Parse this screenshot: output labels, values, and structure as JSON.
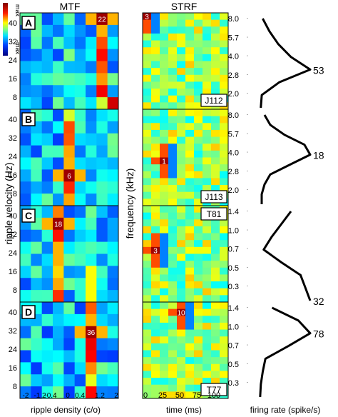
{
  "colorbar": {
    "top_label": "max",
    "bottom_label": "-max"
  },
  "headers": {
    "mtf": "MTF",
    "strf": "STRF"
  },
  "axis_labels": {
    "mtf_y": "ripple velocity (Hz)",
    "mtf_x": "ripple density (c/o)",
    "strf_y": "frequency (kHz)",
    "strf_x": "time (ms)",
    "rate_x": "firing rate (spike/s)"
  },
  "ticks": {
    "mtf_y": [
      "40",
      "32",
      "24",
      "16",
      "8"
    ],
    "mtf_x": [
      "-2",
      "-1.2",
      "-0.4",
      "0",
      "0.4",
      "1.2",
      "2"
    ],
    "strf_x": [
      "0",
      "25",
      "50",
      "75",
      "100"
    ]
  },
  "chart_data": [
    {
      "panel": "A",
      "type": "heatmap",
      "kind": "MTF",
      "annotation": "22",
      "peak_cell": [
        7,
        0
      ]
    },
    {
      "panel": "A",
      "type": "heatmap",
      "kind": "STRF",
      "annotation": "3",
      "cell_label": "J112",
      "peak_cell": [
        0,
        0
      ]
    },
    {
      "panel": "A",
      "type": "line",
      "kind": "tuning",
      "y_ticks": [
        "8.0",
        "5.7",
        "4.0",
        "2.8",
        "2.0"
      ],
      "y_values": [
        8.0,
        5.7,
        4.0,
        2.8,
        2.0
      ],
      "rate_label": "53",
      "rates": [
        4,
        11,
        20,
        33,
        53,
        21,
        3,
        2
      ]
    },
    {
      "panel": "B",
      "type": "heatmap",
      "kind": "MTF",
      "annotation": "6",
      "peak_cell": [
        4,
        5
      ]
    },
    {
      "panel": "B",
      "type": "heatmap",
      "kind": "STRF",
      "annotation": "1",
      "cell_label": "J113",
      "peak_cell": [
        2,
        7
      ]
    },
    {
      "panel": "B",
      "type": "line",
      "kind": "tuning",
      "y_ticks": [
        "8.0",
        "5.7",
        "4.0",
        "2.8",
        "2.0"
      ],
      "y_values": [
        8.0,
        5.7,
        4.0,
        2.8,
        2.0
      ],
      "rate_label": "18",
      "rates": [
        2,
        4,
        9,
        16,
        18,
        11,
        4,
        2,
        1,
        1
      ]
    },
    {
      "panel": "C",
      "type": "heatmap",
      "kind": "MTF",
      "annotation": "18",
      "peak_cell": [
        3,
        1
      ]
    },
    {
      "panel": "C",
      "type": "heatmap",
      "kind": "STRF",
      "annotation": "3",
      "cell_label": "T81",
      "peak_cell": [
        1,
        6
      ]
    },
    {
      "panel": "C",
      "type": "line",
      "kind": "tuning",
      "y_ticks": [
        "1.4",
        "1.0",
        "0.7",
        "0.5",
        "0.3"
      ],
      "y_values": [
        1.4,
        1.0,
        0.7,
        0.5,
        0.3
      ],
      "rate_label": "32",
      "rates": [
        20,
        14,
        8,
        3,
        14,
        26,
        29,
        32
      ]
    },
    {
      "panel": "D",
      "type": "heatmap",
      "kind": "MTF",
      "annotation": "36",
      "peak_cell": [
        6,
        2
      ]
    },
    {
      "panel": "D",
      "type": "heatmap",
      "kind": "STRF",
      "annotation": "10",
      "cell_label": "T77",
      "peak_cell": [
        4,
        1
      ]
    },
    {
      "panel": "D",
      "type": "line",
      "kind": "tuning",
      "y_ticks": [
        "1.4",
        "1.0",
        "0.7",
        "0.5",
        "0.3"
      ],
      "y_values": [
        1.4,
        1.0,
        0.7,
        0.5,
        0.3
      ],
      "rate_label": "78",
      "rates": [
        20,
        60,
        78,
        45,
        10,
        6,
        3,
        2
      ]
    }
  ]
}
